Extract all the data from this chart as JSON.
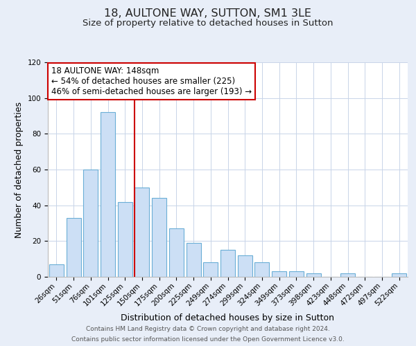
{
  "title": "18, AULTONE WAY, SUTTON, SM1 3LE",
  "subtitle": "Size of property relative to detached houses in Sutton",
  "xlabel": "Distribution of detached houses by size in Sutton",
  "ylabel": "Number of detached properties",
  "categories": [
    "26sqm",
    "51sqm",
    "76sqm",
    "101sqm",
    "125sqm",
    "150sqm",
    "175sqm",
    "200sqm",
    "225sqm",
    "249sqm",
    "274sqm",
    "299sqm",
    "324sqm",
    "349sqm",
    "373sqm",
    "398sqm",
    "423sqm",
    "448sqm",
    "472sqm",
    "497sqm",
    "522sqm"
  ],
  "values": [
    7,
    33,
    60,
    92,
    42,
    50,
    44,
    27,
    19,
    8,
    15,
    12,
    8,
    3,
    3,
    2,
    0,
    2,
    0,
    0,
    2
  ],
  "bar_color": "#ccdff5",
  "bar_edge_color": "#6aaed6",
  "vline_color": "#cc0000",
  "ylim": [
    0,
    120
  ],
  "yticks": [
    0,
    20,
    40,
    60,
    80,
    100,
    120
  ],
  "annotation_title": "18 AULTONE WAY: 148sqm",
  "annotation_line1": "← 54% of detached houses are smaller (225)",
  "annotation_line2": "46% of semi-detached houses are larger (193) →",
  "box_edge_color": "#cc0000",
  "footer_line1": "Contains HM Land Registry data © Crown copyright and database right 2024.",
  "footer_line2": "Contains public sector information licensed under the Open Government Licence v3.0.",
  "background_color": "#e8eef8",
  "plot_background_color": "#ffffff",
  "title_fontsize": 11.5,
  "subtitle_fontsize": 9.5,
  "axis_label_fontsize": 9,
  "tick_fontsize": 7.5,
  "annotation_fontsize": 8.5,
  "footer_fontsize": 6.5
}
